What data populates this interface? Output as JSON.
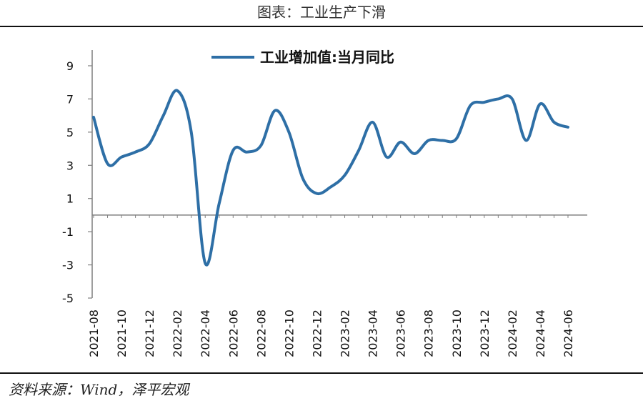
{
  "header": {
    "title": "图表：工业生产下滑"
  },
  "footer": {
    "source": "资料来源：Wind，泽平宏观"
  },
  "colors": {
    "line": "#2E6FA6",
    "axis": "#7F7F7F"
  },
  "chart_data": {
    "type": "line",
    "title": "",
    "xlabel": "",
    "ylabel": "",
    "ylim": [
      -5,
      9
    ],
    "yticks": [
      9,
      7,
      5,
      3,
      1,
      -1,
      -3,
      -5
    ],
    "grid": false,
    "legend_placement": "top-center",
    "x_tick_labels": [
      "2021-08",
      "2021-10",
      "2021-12",
      "2022-02",
      "2022-04",
      "2022-06",
      "2022-08",
      "2022-10",
      "2022-12",
      "2023-02",
      "2023-04",
      "2023-06",
      "2023-08",
      "2023-10",
      "2023-12",
      "2024-02",
      "2024-04",
      "2024-06"
    ],
    "series": [
      {
        "name": "工业增加值:当月同比",
        "x": [
          "2021-08",
          "2021-09",
          "2021-10",
          "2021-11",
          "2021-12",
          "2022-01",
          "2022-02",
          "2022-03",
          "2022-04",
          "2022-05",
          "2022-06",
          "2022-07",
          "2022-08",
          "2022-09",
          "2022-10",
          "2022-11",
          "2022-12",
          "2023-01",
          "2023-02",
          "2023-03",
          "2023-04",
          "2023-05",
          "2023-06",
          "2023-07",
          "2023-08",
          "2023-09",
          "2023-10",
          "2023-11",
          "2023-12",
          "2024-01",
          "2024-02",
          "2024-03",
          "2024-04",
          "2024-05",
          "2024-06"
        ],
        "values": [
          5.9,
          3.1,
          3.5,
          3.8,
          4.3,
          6.0,
          7.5,
          5.0,
          -2.9,
          0.7,
          3.9,
          3.8,
          4.2,
          6.3,
          5.0,
          2.2,
          1.3,
          1.7,
          2.4,
          3.9,
          5.6,
          3.5,
          4.4,
          3.7,
          4.5,
          4.5,
          4.6,
          6.6,
          6.8,
          7.0,
          7.0,
          4.5,
          6.7,
          5.6,
          5.3
        ]
      }
    ]
  }
}
